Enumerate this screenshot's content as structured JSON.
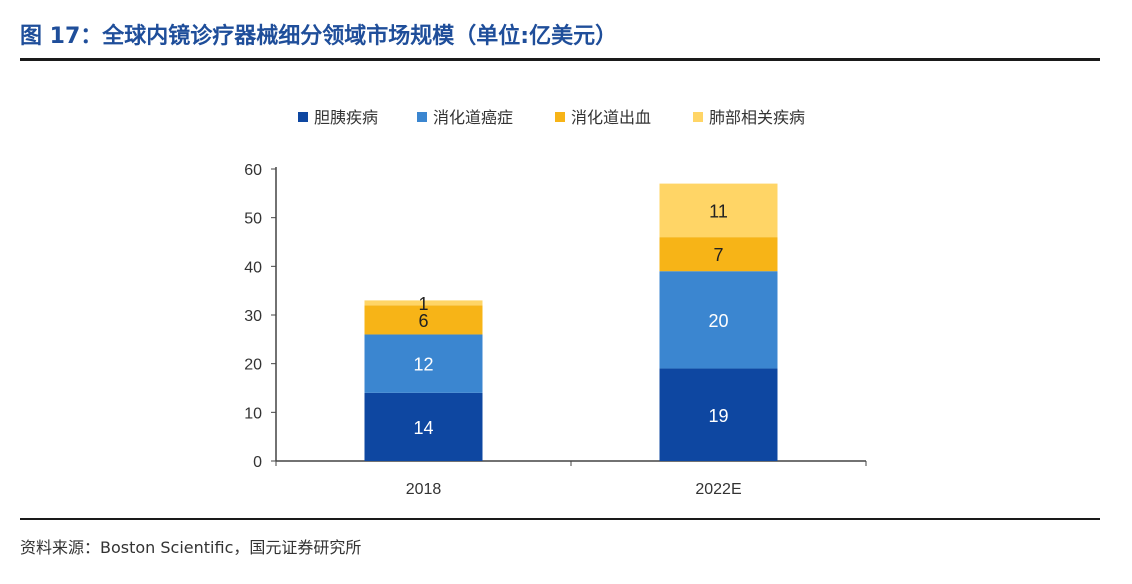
{
  "figure": {
    "title": "图 17：全球内镜诊疗器械细分领域市场规模（单位:亿美元）",
    "source": "资料来源：Boston Scientific，国元证券研究所"
  },
  "chart_data": {
    "type": "bar",
    "stacked": true,
    "categories": [
      "2018",
      "2022E"
    ],
    "series": [
      {
        "name": "胆胰疾病",
        "color": "#0e47a1",
        "values": [
          14,
          19
        ]
      },
      {
        "name": "消化道癌症",
        "color": "#3b86d0",
        "values": [
          12,
          20
        ]
      },
      {
        "name": "消化道出血",
        "color": "#f7b417",
        "values": [
          6,
          7
        ]
      },
      {
        "name": "肺部相关疾病",
        "color": "#ffd566",
        "values": [
          1,
          11
        ]
      }
    ],
    "ylim": [
      0,
      60
    ],
    "yticks": [
      0,
      10,
      20,
      30,
      40,
      50,
      60
    ],
    "grid": false,
    "legend_position": "top"
  }
}
